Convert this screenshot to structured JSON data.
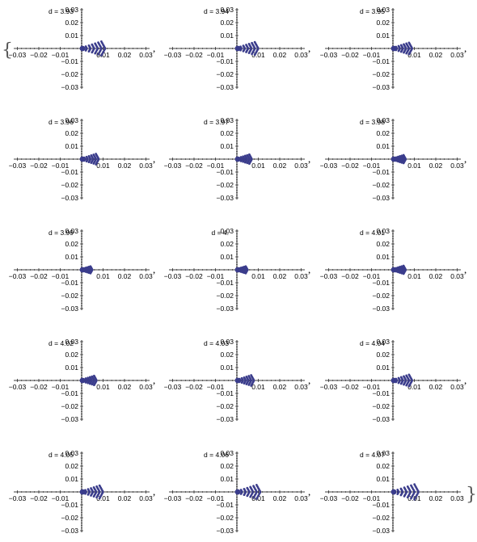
{
  "colors": {
    "points": "#3b3d8c",
    "axes": "#000000"
  },
  "brackets": {
    "open": "{",
    "close": "}",
    "separator": ","
  },
  "chart_data": {
    "type": "scatter",
    "xlim": [
      -0.03,
      0.03
    ],
    "ylim": [
      -0.03,
      0.03
    ],
    "x_ticks": [
      -0.03,
      -0.02,
      -0.01,
      0.01,
      0.02,
      0.03
    ],
    "y_ticks": [
      0.03,
      0.02,
      0.01,
      -0.01,
      -0.02,
      -0.03
    ],
    "tick_labels": {
      "x": [
        "−0.03",
        "−0.02",
        "−0.01",
        "0.01",
        "0.02",
        "0.03"
      ],
      "y": [
        "0.03",
        "0.02",
        "0.01",
        "−0.01",
        "−0.02",
        "−0.03"
      ]
    },
    "grid": false,
    "panels": [
      {
        "label": "d = 3.93",
        "d": 3.93,
        "spread": 0.012,
        "skew": 0.0
      },
      {
        "label": "d = 3.94",
        "d": 3.94,
        "spread": 0.011,
        "skew": 0.0
      },
      {
        "label": "d = 3.95",
        "d": 3.95,
        "spread": 0.01,
        "skew": 0.0
      },
      {
        "label": "d = 3.96",
        "d": 3.96,
        "spread": 0.009,
        "skew": 0.0
      },
      {
        "label": "d = 3.97",
        "d": 3.97,
        "spread": 0.008,
        "skew": 0.0
      },
      {
        "label": "d = 3.98",
        "d": 3.98,
        "spread": 0.007,
        "skew": 0.0
      },
      {
        "label": "d = 3.99",
        "d": 3.99,
        "spread": 0.006,
        "skew": 0.0
      },
      {
        "label": "d = 4.",
        "d": 4.0,
        "spread": 0.006,
        "skew": 0.0
      },
      {
        "label": "d = 4.01",
        "d": 4.01,
        "spread": 0.007,
        "skew": 0.0
      },
      {
        "label": "d = 4.02",
        "d": 4.02,
        "spread": 0.008,
        "skew": 0.0
      },
      {
        "label": "d = 4.03",
        "d": 4.03,
        "spread": 0.009,
        "skew": 0.0
      },
      {
        "label": "d = 4.04",
        "d": 4.04,
        "spread": 0.01,
        "skew": 0.0
      },
      {
        "label": "d = 4.05",
        "d": 4.05,
        "spread": 0.011,
        "skew": 0.0
      },
      {
        "label": "d = 4.06",
        "d": 4.06,
        "spread": 0.012,
        "skew": 0.0
      },
      {
        "label": "d = 4.07",
        "d": 4.07,
        "spread": 0.013,
        "skew": 0.0
      }
    ]
  }
}
